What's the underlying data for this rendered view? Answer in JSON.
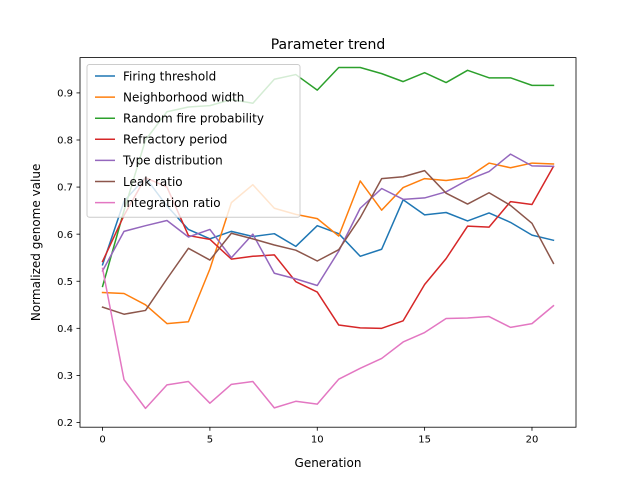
{
  "chart_data": {
    "type": "line",
    "title": "Parameter trend",
    "xlabel": "Generation",
    "ylabel": "Normalized genome value",
    "xlim": [
      -1.05,
      22.05
    ],
    "ylim": [
      0.19,
      0.975
    ],
    "xticks": [
      0,
      5,
      10,
      15,
      20
    ],
    "yticks": [
      0.2,
      0.3,
      0.4,
      0.5,
      0.6,
      0.7,
      0.8,
      0.9
    ],
    "ytick_labels": [
      "0.2",
      "0.3",
      "0.4",
      "0.5",
      "0.6",
      "0.7",
      "0.8",
      "0.9"
    ],
    "grid": false,
    "legend_position": "upper left",
    "x": [
      0,
      1,
      2,
      3,
      4,
      5,
      6,
      7,
      8,
      9,
      10,
      11,
      12,
      13,
      14,
      15,
      16,
      17,
      18,
      19,
      20,
      21
    ],
    "series": [
      {
        "name": "Firing threshold",
        "color": "#1f77b4",
        "values": [
          0.535,
          0.67,
          0.72,
          0.66,
          0.61,
          0.59,
          0.606,
          0.595,
          0.601,
          0.574,
          0.618,
          0.601,
          0.553,
          0.568,
          0.673,
          0.641,
          0.646,
          0.628,
          0.645,
          0.625,
          0.598,
          0.587
        ]
      },
      {
        "name": "Neighborhood width",
        "color": "#ff7f0e",
        "values": [
          0.476,
          0.474,
          0.45,
          0.41,
          0.414,
          0.526,
          0.667,
          0.705,
          0.655,
          0.642,
          0.633,
          0.596,
          0.713,
          0.651,
          0.699,
          0.718,
          0.714,
          0.72,
          0.751,
          0.741,
          0.751,
          0.749
        ]
      },
      {
        "name": "Random fire probability",
        "color": "#2ca02c",
        "values": [
          0.489,
          0.65,
          0.8,
          0.86,
          0.87,
          0.873,
          0.886,
          0.878,
          0.929,
          0.939,
          0.906,
          0.954,
          0.954,
          0.941,
          0.924,
          0.943,
          0.922,
          0.948,
          0.932,
          0.932,
          0.916,
          0.916
        ]
      },
      {
        "name": "Refractory period",
        "color": "#d62728",
        "values": [
          0.542,
          0.64,
          0.72,
          0.7,
          0.597,
          0.589,
          0.547,
          0.553,
          0.556,
          0.499,
          0.477,
          0.407,
          0.401,
          0.4,
          0.416,
          0.493,
          0.548,
          0.617,
          0.615,
          0.669,
          0.663,
          0.744
        ]
      },
      {
        "name": "Type distribution",
        "color": "#9467bd",
        "values": [
          0.522,
          0.606,
          0.618,
          0.629,
          0.594,
          0.61,
          0.55,
          0.6,
          0.517,
          0.505,
          0.491,
          0.564,
          0.655,
          0.697,
          0.674,
          0.677,
          0.69,
          0.715,
          0.733,
          0.77,
          0.745,
          0.744
        ]
      },
      {
        "name": "Leak ratio",
        "color": "#8c564b",
        "values": [
          0.445,
          0.43,
          0.438,
          0.505,
          0.57,
          0.545,
          0.602,
          0.59,
          0.577,
          0.566,
          0.543,
          0.567,
          0.635,
          0.718,
          0.722,
          0.735,
          0.687,
          0.664,
          0.688,
          0.661,
          0.623,
          0.538
        ]
      },
      {
        "name": "Integration ratio",
        "color": "#e377c2",
        "values": [
          0.527,
          0.291,
          0.23,
          0.28,
          0.287,
          0.241,
          0.281,
          0.287,
          0.231,
          0.245,
          0.239,
          0.292,
          0.315,
          0.336,
          0.371,
          0.391,
          0.421,
          0.422,
          0.425,
          0.402,
          0.41,
          0.448
        ]
      }
    ]
  }
}
